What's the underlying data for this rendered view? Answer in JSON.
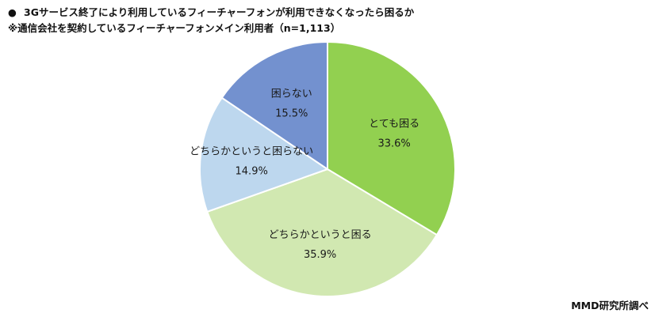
{
  "header": {
    "bullet": "●",
    "title": "3Gサービス終了により利用しているフィーチャーフォンが利用できなくなったら困るか",
    "subtitle": "※通信会社を契約しているフィーチャーフォンメイン利用者（n=1,113）"
  },
  "source": "MMD研究所調べ",
  "chart_data": {
    "type": "pie",
    "title": "3Gサービス終了により利用しているフィーチャーフォンが利用できなくなったら困るか",
    "subtitle": "※通信会社を契約しているフィーチャーフォンメイン利用者（n=1,113）",
    "start": "12 o'clock, clockwise",
    "slices": [
      {
        "label": "とても困る",
        "value": 33.6,
        "display": "33.6%",
        "color": "#92d050"
      },
      {
        "label": "どちらかというと困る",
        "value": 35.9,
        "display": "35.9%",
        "color": "#d1e8b1"
      },
      {
        "label": "どちらかというと困らない",
        "value": 14.9,
        "display": "14.9%",
        "color": "#bdd7ee"
      },
      {
        "label": "困らない",
        "value": 15.5,
        "display": "15.5%",
        "color": "#7391cf"
      }
    ],
    "legend": "none (labels inside slices)"
  }
}
